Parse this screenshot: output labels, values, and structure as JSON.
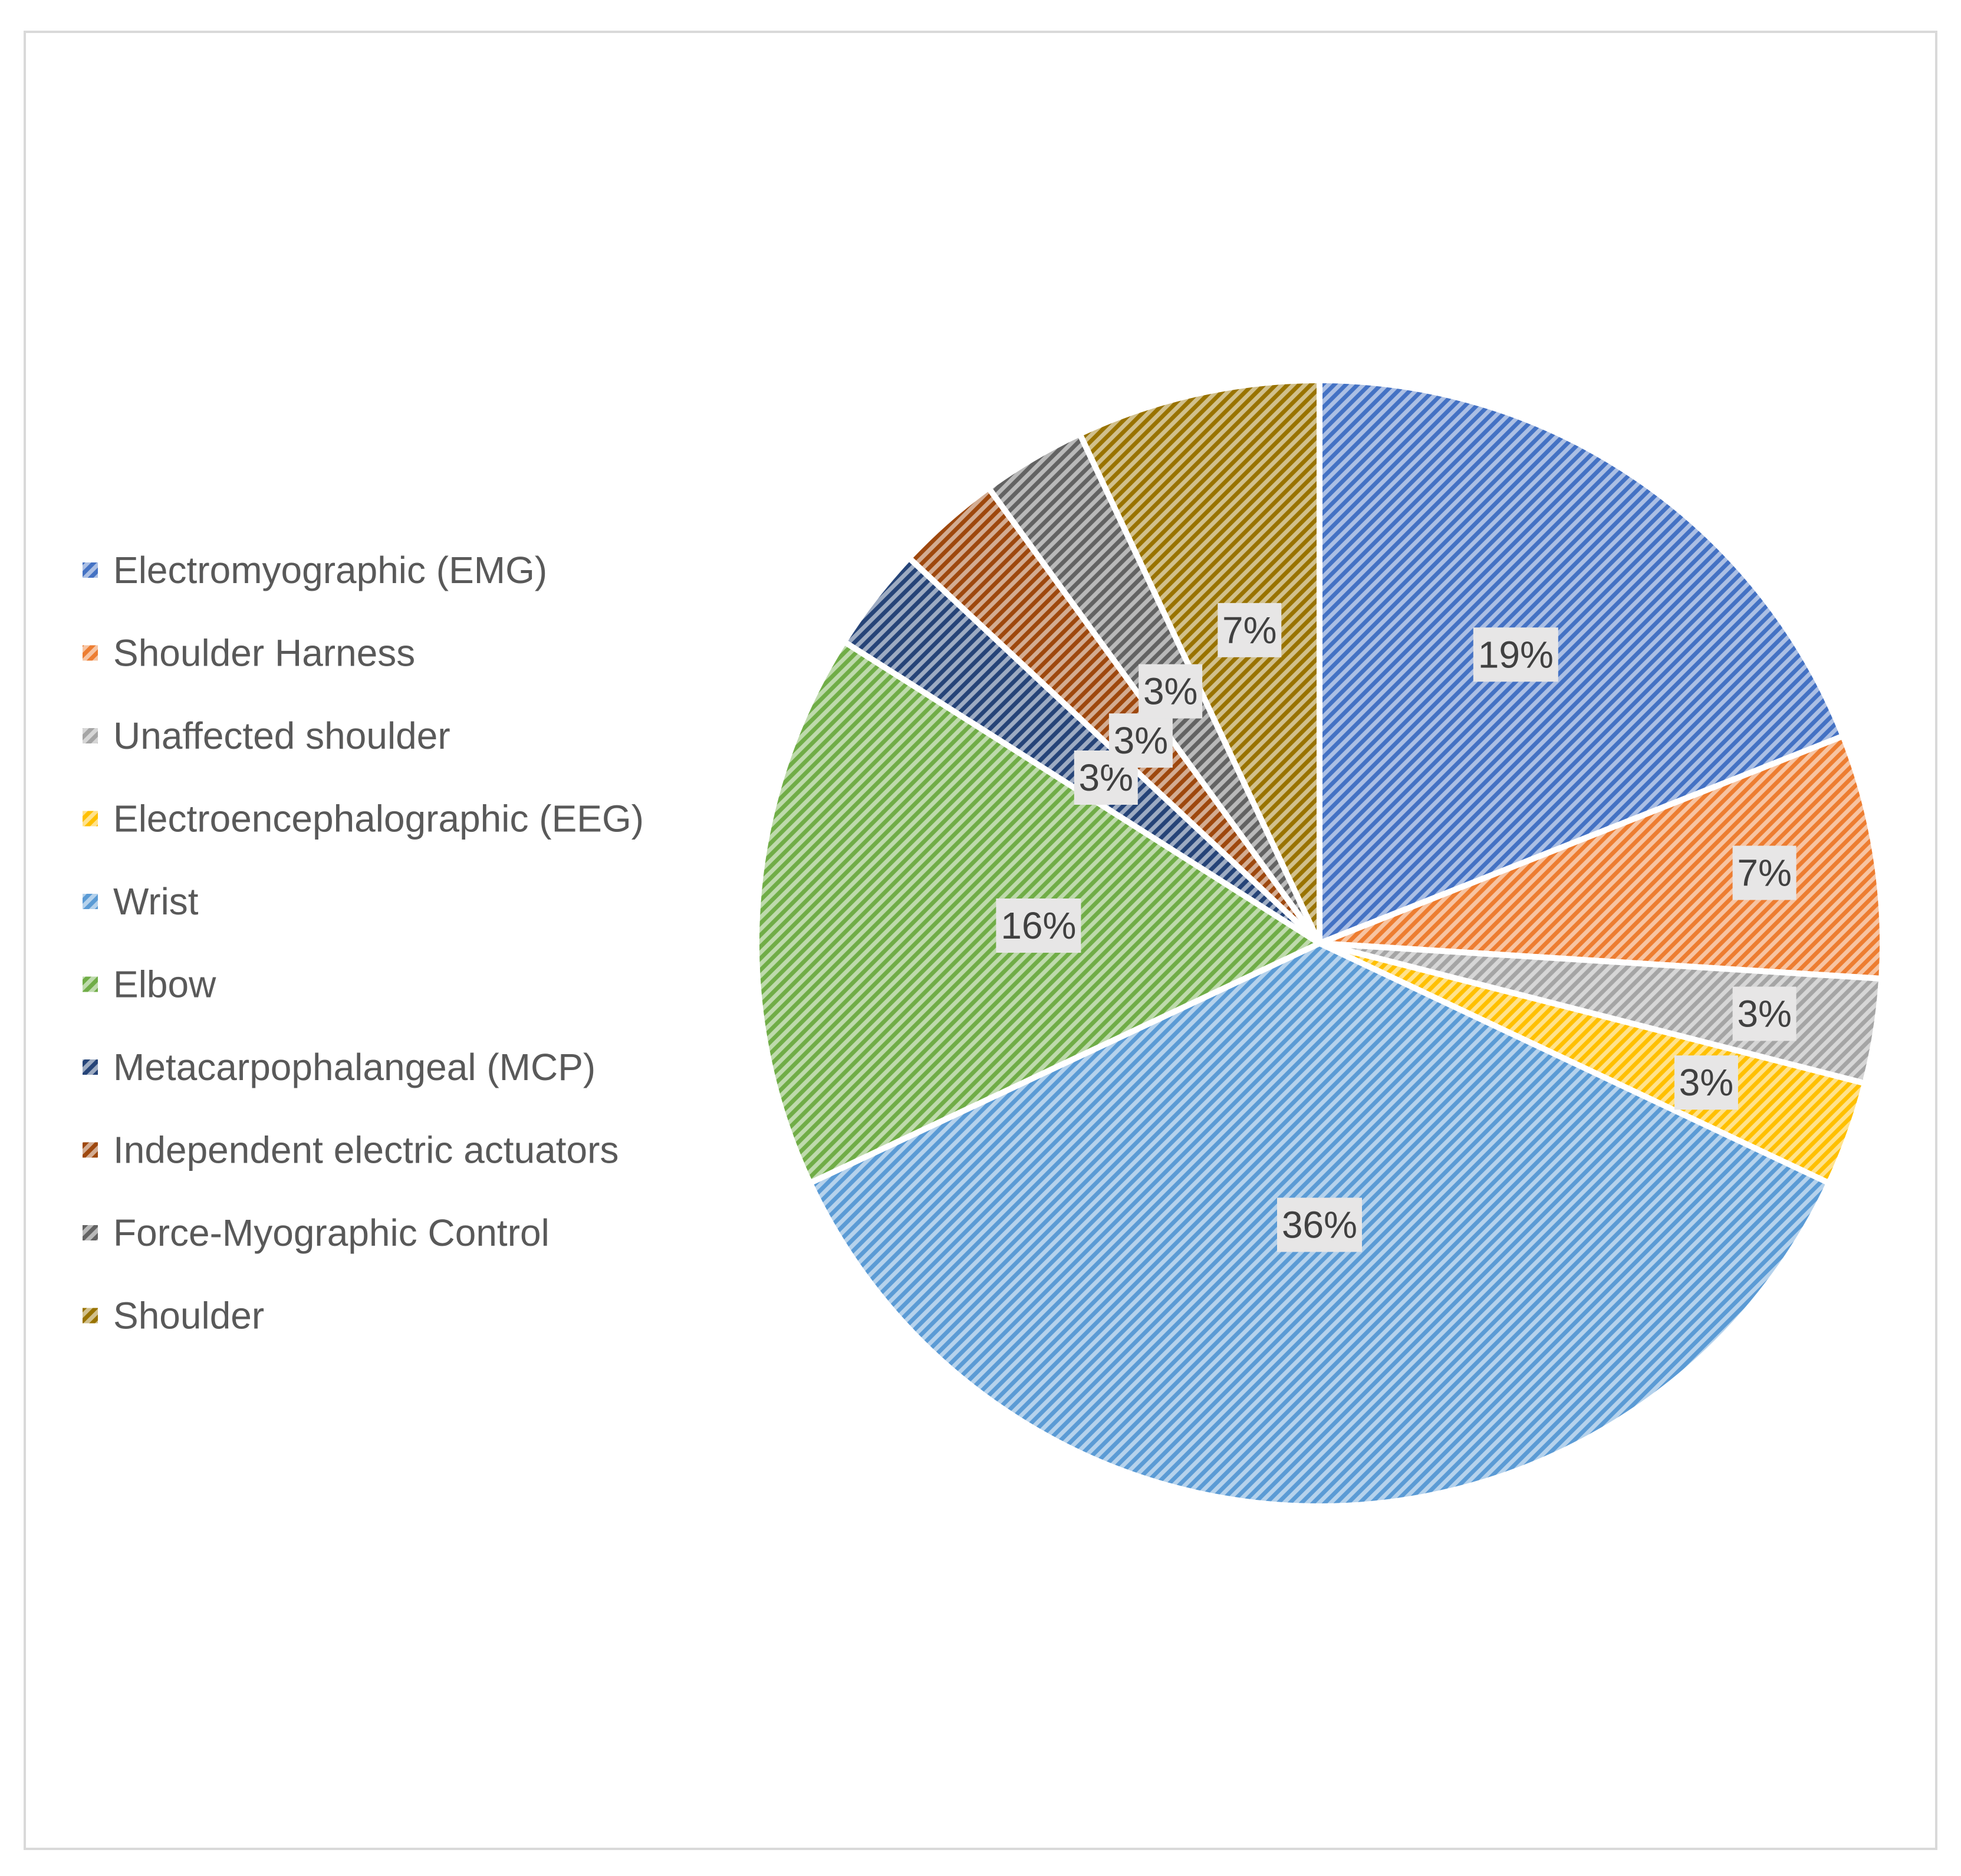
{
  "chart_data": {
    "type": "pie",
    "title": "",
    "legend_position": "left",
    "slices": [
      {
        "label": "Electromyographic (EMG)",
        "value": 19,
        "display": "19%",
        "color": "#4472c4"
      },
      {
        "label": "Shoulder Harness",
        "value": 7,
        "display": "7%",
        "color": "#ed7d31"
      },
      {
        "label": "Unaffected shoulder",
        "value": 3,
        "display": "3%",
        "color": "#a5a5a5"
      },
      {
        "label": "Electroencephalographic (EEG)",
        "value": 3,
        "display": "3%",
        "color": "#ffc000"
      },
      {
        "label": "Wrist",
        "value": 36,
        "display": "36%",
        "color": "#5b9bd5"
      },
      {
        "label": "Elbow",
        "value": 16,
        "display": "16%",
        "color": "#70ad47"
      },
      {
        "label": "Metacarpophalangeal (MCP)",
        "value": 3,
        "display": "3%",
        "color": "#264478"
      },
      {
        "label": "Independent electric actuators",
        "value": 3,
        "display": "3%",
        "color": "#9e480e"
      },
      {
        "label": "Force-Myographic Control",
        "value": 3,
        "display": "3%",
        "color": "#636363"
      },
      {
        "label": "Shoulder",
        "value": 7,
        "display": "7%",
        "color": "#997300"
      }
    ]
  }
}
